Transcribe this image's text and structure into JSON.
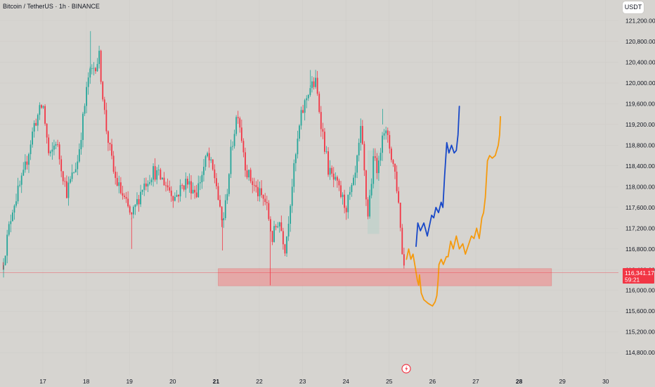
{
  "header": {
    "symbol_title": "Bitcoin / TetherUS · 1h · BINANCE",
    "currency_button": "USDT"
  },
  "price_tag": {
    "price": "116,341.17",
    "countdown": "59:21"
  },
  "colors": {
    "up": "#26a69a",
    "down": "#f23645",
    "price_tag": "#f23645",
    "zone": "#e99a9a",
    "projection_blue": "#1848c8",
    "projection_orange": "#f59a0d",
    "background": "#d6d4d0",
    "consolidation_box": "#b8cfc8"
  },
  "icons": {
    "timeline_event": "lightning-icon"
  },
  "chart_data": {
    "type": "candlestick",
    "title": "Bitcoin / TetherUS · 1h · BINANCE",
    "y_ticks": [
      121200,
      120800,
      120400,
      120000,
      119600,
      119200,
      118800,
      118400,
      118000,
      117600,
      117200,
      116800,
      116400,
      116000,
      115600,
      115200,
      114800
    ],
    "y_tick_labels": [
      "121,200.00",
      "120,800.00",
      "120,400.00",
      "120,000.00",
      "119,600.00",
      "119,200.00",
      "118,800.00",
      "118,400.00",
      "118,000.00",
      "117,600.00",
      "117,200.00",
      "116,800.00",
      "116,400.00",
      "116,000.00",
      "115,600.00",
      "115,200.00",
      "114,800.00"
    ],
    "ylim": [
      114600,
      121440
    ],
    "x_ticks": [
      {
        "day": 17,
        "label": "17"
      },
      {
        "day": 18,
        "label": "18"
      },
      {
        "day": 19,
        "label": "19"
      },
      {
        "day": 20,
        "label": "20"
      },
      {
        "day": 21,
        "label": "21",
        "bold": true
      },
      {
        "day": 22,
        "label": "22"
      },
      {
        "day": 23,
        "label": "23"
      },
      {
        "day": 24,
        "label": "24"
      },
      {
        "day": 25,
        "label": "25"
      },
      {
        "day": 26,
        "label": "26"
      },
      {
        "day": 27,
        "label": "27"
      },
      {
        "day": 28,
        "label": "28",
        "bold": true
      },
      {
        "day": 29,
        "label": "29"
      },
      {
        "day": 30,
        "label": "30"
      }
    ],
    "xlim": [
      16.05,
      30.45
    ],
    "last_price": 116341.17,
    "support_zone": {
      "x_start": 21.05,
      "x_end": 28.75,
      "y_low": 116090,
      "y_high": 116420
    },
    "consolidation_box": {
      "x_start": 24.5,
      "x_end": 24.77,
      "y_low": 117090,
      "y_high": 118700
    },
    "wick_spikes": [
      {
        "x": 16.08,
        "y": 116400
      },
      {
        "x": 18.1,
        "y": 121000
      },
      {
        "x": 19.05,
        "y": 116800
      },
      {
        "x": 21.15,
        "y": 116770
      },
      {
        "x": 22.25,
        "y": 116100
      },
      {
        "x": 23.18,
        "y": 120250
      },
      {
        "x": 24.85,
        "y": 119500
      }
    ],
    "anchors": [
      [
        16.05,
        116400
      ],
      [
        16.3,
        117600
      ],
      [
        16.55,
        118200
      ],
      [
        16.8,
        119200
      ],
      [
        17.0,
        119600
      ],
      [
        17.15,
        118500
      ],
      [
        17.3,
        118900
      ],
      [
        17.55,
        117900
      ],
      [
        17.8,
        118500
      ],
      [
        18.05,
        120100
      ],
      [
        18.3,
        120500
      ],
      [
        18.45,
        119200
      ],
      [
        18.65,
        118200
      ],
      [
        18.85,
        117800
      ],
      [
        19.05,
        117400
      ],
      [
        19.3,
        118000
      ],
      [
        19.55,
        118300
      ],
      [
        19.8,
        118100
      ],
      [
        20.05,
        117800
      ],
      [
        20.3,
        118100
      ],
      [
        20.55,
        117900
      ],
      [
        20.8,
        118600
      ],
      [
        21.0,
        118100
      ],
      [
        21.12,
        117300
      ],
      [
        21.2,
        117500
      ],
      [
        21.35,
        118700
      ],
      [
        21.5,
        119500
      ],
      [
        21.7,
        118300
      ],
      [
        21.95,
        117900
      ],
      [
        22.15,
        117700
      ],
      [
        22.3,
        117000
      ],
      [
        22.45,
        117400
      ],
      [
        22.6,
        116800
      ],
      [
        22.75,
        118000
      ],
      [
        22.95,
        119300
      ],
      [
        23.15,
        119900
      ],
      [
        23.3,
        120000
      ],
      [
        23.45,
        119100
      ],
      [
        23.6,
        118300
      ],
      [
        23.8,
        118000
      ],
      [
        24.0,
        117600
      ],
      [
        24.2,
        118100
      ],
      [
        24.35,
        119100
      ],
      [
        24.5,
        117400
      ],
      [
        24.65,
        118600
      ],
      [
        24.75,
        118300
      ],
      [
        24.85,
        119200
      ],
      [
        25.0,
        118800
      ],
      [
        25.15,
        118200
      ],
      [
        25.25,
        117400
      ],
      [
        25.3,
        116700
      ],
      [
        25.38,
        116341
      ]
    ],
    "projection_blue": [
      [
        25.62,
        116850
      ],
      [
        25.66,
        117300
      ],
      [
        25.72,
        117150
      ],
      [
        25.8,
        117300
      ],
      [
        25.88,
        117050
      ],
      [
        25.98,
        117450
      ],
      [
        26.03,
        117400
      ],
      [
        26.08,
        117600
      ],
      [
        26.14,
        117500
      ],
      [
        26.2,
        117700
      ],
      [
        26.24,
        117600
      ],
      [
        26.28,
        118200
      ],
      [
        26.33,
        118850
      ],
      [
        26.38,
        118650
      ],
      [
        26.44,
        118800
      ],
      [
        26.5,
        118650
      ],
      [
        26.55,
        118700
      ],
      [
        26.59,
        119000
      ],
      [
        26.62,
        119550
      ]
    ],
    "projection_orange": [
      [
        25.4,
        116600
      ],
      [
        25.45,
        116800
      ],
      [
        25.5,
        116600
      ],
      [
        25.55,
        116700
      ],
      [
        25.6,
        116450
      ],
      [
        25.65,
        116200
      ],
      [
        25.68,
        116100
      ],
      [
        25.7,
        116300
      ],
      [
        25.74,
        115950
      ],
      [
        25.8,
        115820
      ],
      [
        25.9,
        115750
      ],
      [
        26.0,
        115700
      ],
      [
        26.06,
        115780
      ],
      [
        26.1,
        115900
      ],
      [
        26.13,
        116200
      ],
      [
        26.15,
        116500
      ],
      [
        26.2,
        116600
      ],
      [
        26.25,
        116500
      ],
      [
        26.32,
        116650
      ],
      [
        26.36,
        116650
      ],
      [
        26.42,
        116950
      ],
      [
        26.48,
        116800
      ],
      [
        26.55,
        117050
      ],
      [
        26.62,
        116800
      ],
      [
        26.7,
        116900
      ],
      [
        26.76,
        116700
      ],
      [
        26.82,
        116850
      ],
      [
        26.9,
        117050
      ],
      [
        26.96,
        117000
      ],
      [
        27.02,
        117200
      ],
      [
        27.08,
        117000
      ],
      [
        27.14,
        117400
      ],
      [
        27.18,
        117500
      ],
      [
        27.22,
        117800
      ],
      [
        27.27,
        118500
      ],
      [
        27.32,
        118600
      ],
      [
        27.38,
        118550
      ],
      [
        27.45,
        118600
      ],
      [
        27.52,
        118800
      ],
      [
        27.55,
        119000
      ],
      [
        27.57,
        119350
      ]
    ]
  }
}
